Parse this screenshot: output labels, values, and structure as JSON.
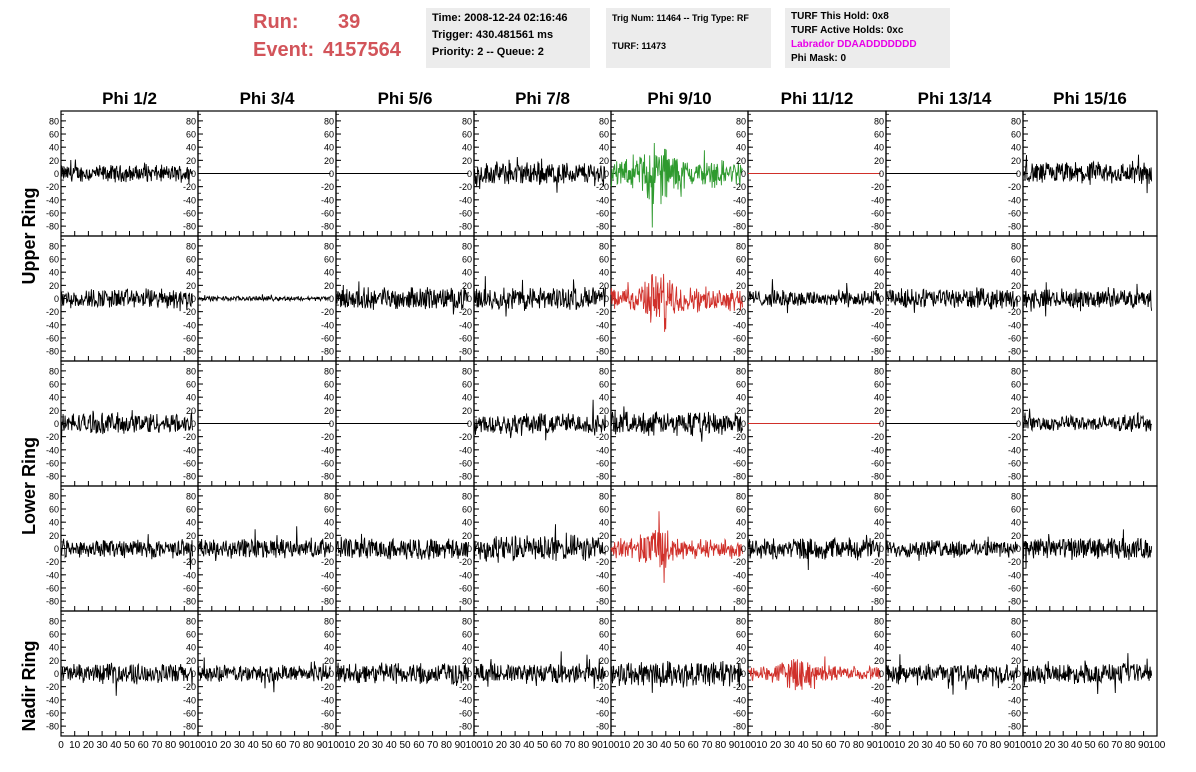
{
  "run": {
    "run_label": "Run:",
    "run_value": "39",
    "event_label": "Event:",
    "event_value": "4157564"
  },
  "info_box_1": [
    "Time: 2008-12-24 02:16:46",
    "Trigger: 430.481561 ms",
    "Priority: 2 -- Queue: 2"
  ],
  "info_box_2": [
    "Trig Num: 11464 -- Trig Type: RF",
    "TURF: 11473"
  ],
  "info_box_3": [
    "TURF This Hold: 0x8",
    "TURF Active Holds: 0xc",
    "Labrador DDAADDDDDDD",
    "Phi Mask: 0"
  ],
  "colors": {
    "run_text": "#d2545a",
    "box_bg": "#ececec",
    "trace_default": "#000000",
    "trace_green": "#2f9a2f",
    "trace_red": "#d0302a",
    "labrador": "#e800e8"
  },
  "chart_data": {
    "type": "line",
    "columns": [
      "Phi 1/2",
      "Phi 3/4",
      "Phi 5/6",
      "Phi 7/8",
      "Phi 9/10",
      "Phi 11/12",
      "Phi 13/14",
      "Phi 15/16"
    ],
    "ring_labels": [
      "Upper Ring",
      "Lower Ring",
      "Nadir Ring"
    ],
    "ylim": [
      -95,
      95
    ],
    "xlim": [
      0,
      100
    ],
    "yticks": [
      -80,
      -60,
      -40,
      -20,
      0,
      20,
      40,
      60,
      80
    ],
    "xticks": [
      0,
      10,
      20,
      30,
      40,
      50,
      60,
      70,
      80,
      90,
      100
    ],
    "rows": 5,
    "panels": [
      [
        {
          "c": "k",
          "a": 11
        },
        {
          "c": "k",
          "a": 0
        },
        {
          "c": "k",
          "a": 0
        },
        {
          "c": "k",
          "a": 15
        },
        {
          "c": "g",
          "a": 26
        },
        {
          "c": "r",
          "a": 0
        },
        {
          "c": "k",
          "a": 0
        },
        {
          "c": "k",
          "a": 15
        }
      ],
      [
        {
          "c": "k",
          "a": 13
        },
        {
          "c": "k",
          "a": 3
        },
        {
          "c": "k",
          "a": 14
        },
        {
          "c": "k",
          "a": 15
        },
        {
          "c": "r",
          "a": 22
        },
        {
          "c": "k",
          "a": 11
        },
        {
          "c": "k",
          "a": 13
        },
        {
          "c": "k",
          "a": 12
        }
      ],
      [
        {
          "c": "k",
          "a": 14
        },
        {
          "c": "k",
          "a": 0
        },
        {
          "c": "k",
          "a": 0
        },
        {
          "c": "k",
          "a": 14
        },
        {
          "c": "k",
          "a": 15
        },
        {
          "c": "r",
          "a": 0
        },
        {
          "c": "k",
          "a": 0
        },
        {
          "c": "k",
          "a": 10
        }
      ],
      [
        {
          "c": "k",
          "a": 12
        },
        {
          "c": "k",
          "a": 13
        },
        {
          "c": "k",
          "a": 14
        },
        {
          "c": "k",
          "a": 17
        },
        {
          "c": "r",
          "a": 18
        },
        {
          "c": "k",
          "a": 14
        },
        {
          "c": "k",
          "a": 11
        },
        {
          "c": "k",
          "a": 14
        }
      ],
      [
        {
          "c": "k",
          "a": 13
        },
        {
          "c": "k",
          "a": 11
        },
        {
          "c": "k",
          "a": 14
        },
        {
          "c": "k",
          "a": 13
        },
        {
          "c": "k",
          "a": 17
        },
        {
          "c": "r",
          "a": 14
        },
        {
          "c": "k",
          "a": 12
        },
        {
          "c": "k",
          "a": 13
        }
      ]
    ],
    "n_samples": 256
  }
}
